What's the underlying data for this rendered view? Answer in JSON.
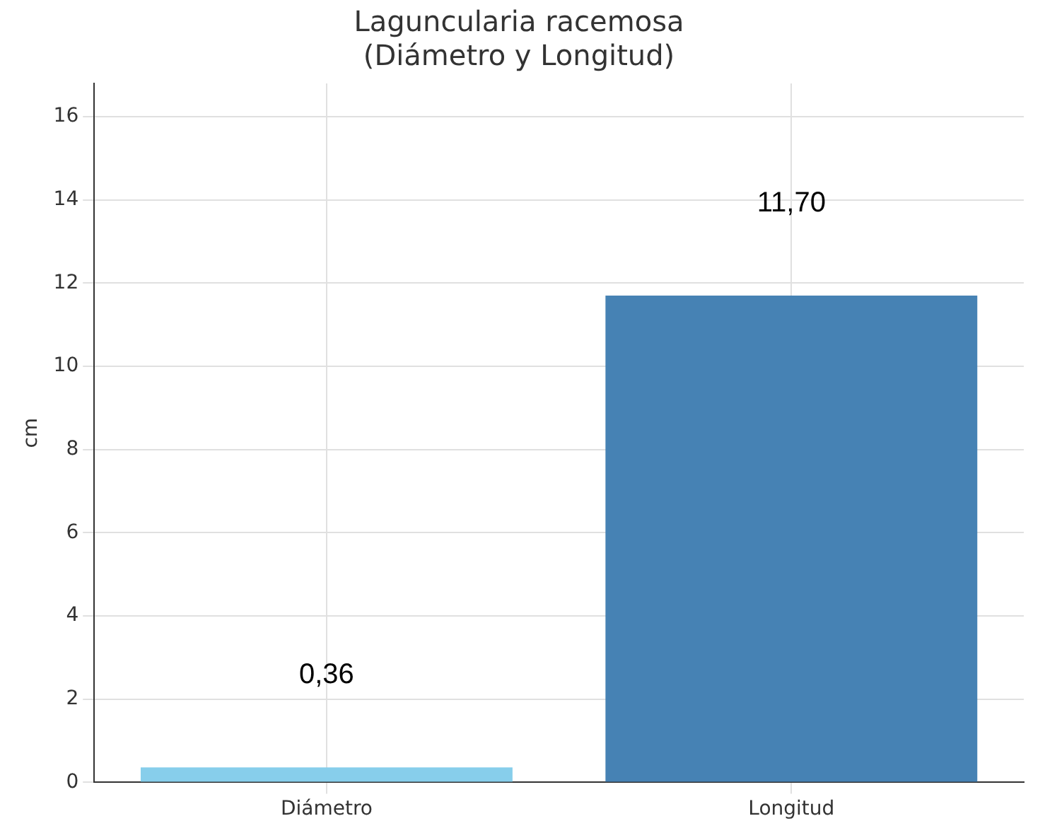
{
  "chart_data": {
    "type": "bar",
    "title": "Laguncularia racemosa\n(Diámetro y Longitud)",
    "ylabel": "cm",
    "categories": [
      "Diámetro",
      "Longitud"
    ],
    "values": [
      0.36,
      11.7
    ],
    "colors": [
      "#87ceeb",
      "#4682b4"
    ],
    "value_labels": [
      "0,36",
      "11,70"
    ],
    "ylim": [
      0,
      16.8
    ],
    "yticks": [
      0,
      2,
      4,
      6,
      8,
      10,
      12,
      14,
      16
    ],
    "grid": true,
    "legend": false
  }
}
